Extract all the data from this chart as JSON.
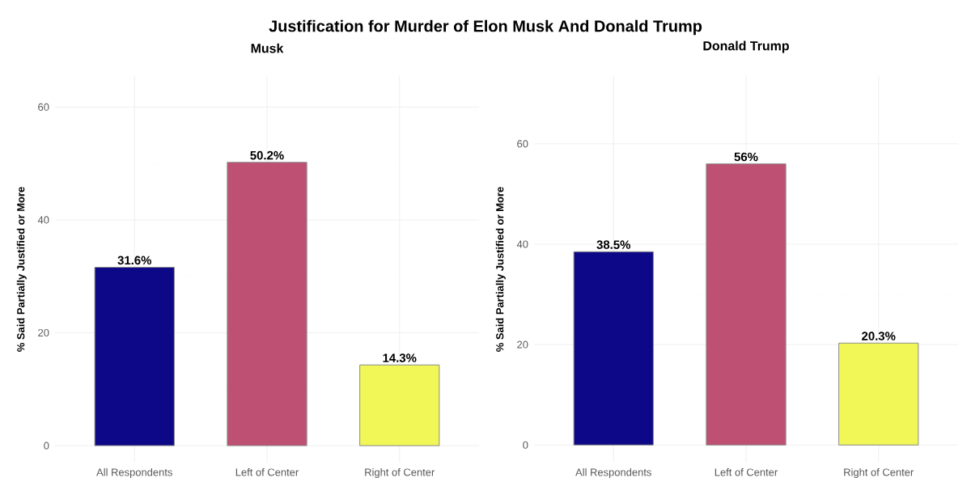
{
  "chart_data": [
    {
      "type": "bar",
      "title": "Justification for Murder of Elon Musk And Donald Trump",
      "subtitle": "Musk",
      "ylabel": "% Said Partially Justified or More",
      "categories": [
        "All Respondents",
        "Left of Center",
        "Right of Center"
      ],
      "values": [
        31.6,
        50.2,
        14.3
      ],
      "colors": [
        "#0d0887",
        "#bd5073",
        "#f0f757"
      ],
      "value_labels": [
        "31.6%",
        "50.2%",
        "14.3%"
      ],
      "ylim": [
        -3,
        65.5
      ],
      "yticks": [
        0,
        20,
        40,
        60
      ],
      "grid": true
    },
    {
      "type": "bar",
      "subtitle": "Donald Trump",
      "ylabel": "% Said Partially Justified or More",
      "categories": [
        "All Respondents",
        "Left of Center",
        "Right of Center"
      ],
      "values": [
        38.5,
        56,
        20.3
      ],
      "colors": [
        "#0d0887",
        "#bd5073",
        "#f0f757"
      ],
      "value_labels": [
        "38.5%",
        "56%",
        "20.3%"
      ],
      "ylim": [
        -3.5,
        73.5
      ],
      "yticks": [
        0,
        20,
        40,
        60
      ],
      "grid": true
    }
  ]
}
